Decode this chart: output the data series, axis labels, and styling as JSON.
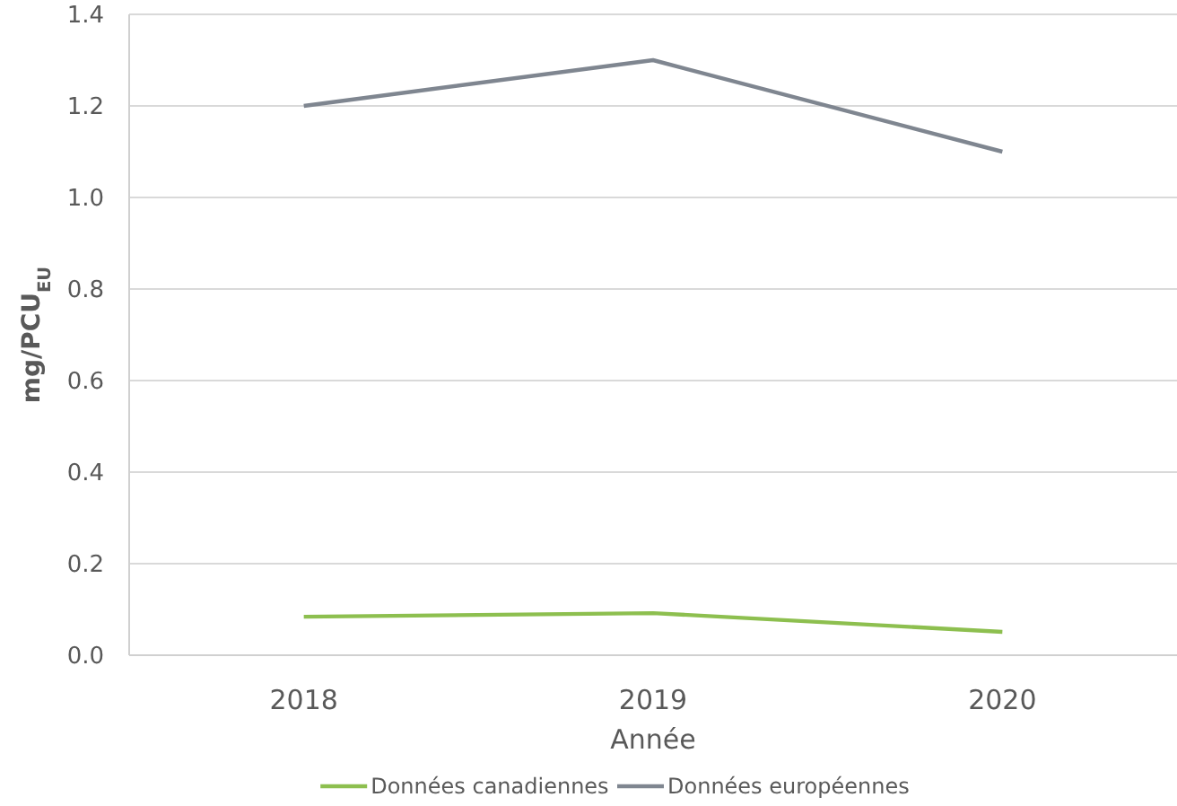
{
  "chart_data": {
    "type": "line",
    "xlabel": "Année",
    "ylabel": "mg/PCU$_{EU}$",
    "categories": [
      "2018",
      "2019",
      "2020"
    ],
    "series": [
      {
        "name": "Données canadiennes",
        "color": "#8dbf4f",
        "values": [
          0.084,
          0.092,
          0.051
        ]
      },
      {
        "name": "Données européennes",
        "color": "#7f8690",
        "values": [
          1.2,
          1.3,
          1.1
        ]
      }
    ],
    "ylim": [
      0,
      1.4
    ],
    "yticks": [
      {
        "value": 0,
        "label": "0.0"
      },
      0.2,
      0.4,
      0.6,
      0.8,
      {
        "value": 1,
        "label": "1.0"
      },
      1.2,
      1.4
    ],
    "grid": "y",
    "legend": "bottom",
    "marker": "none",
    "line_style": "solid"
  }
}
